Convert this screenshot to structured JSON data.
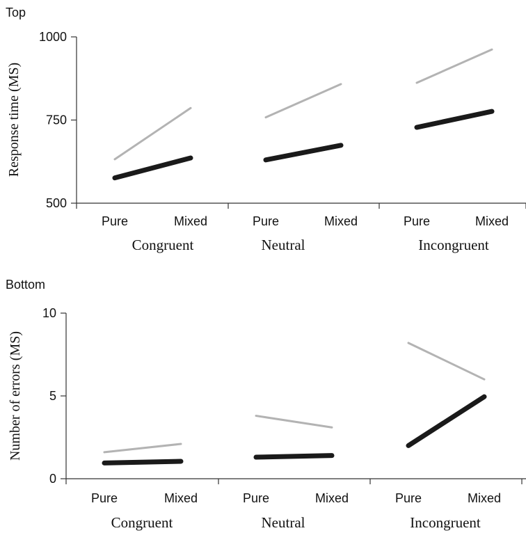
{
  "chart_data": [
    {
      "type": "line",
      "panel_title": "Top",
      "ylabel": "Response time (MS)",
      "ylim": [
        500,
        1000
      ],
      "yticks": [
        "500",
        "750",
        "1000"
      ],
      "conditions": [
        "Congruent",
        "Neutral",
        "Incongruent"
      ],
      "x_labels": [
        "Pure",
        "Mixed"
      ],
      "series": [
        {
          "color": "#b3b3b3",
          "style": "thin",
          "values": [
            [
              632,
              786
            ],
            [
              758,
              858
            ],
            [
              862,
              962
            ]
          ]
        },
        {
          "color": "#1a1a1a",
          "style": "thick",
          "values": [
            [
              576,
              636
            ],
            [
              630,
              674
            ],
            [
              728,
              776
            ]
          ]
        }
      ]
    },
    {
      "type": "line",
      "panel_title": "Bottom",
      "ylabel": "Number of errors (MS)",
      "ylim": [
        0,
        10
      ],
      "yticks": [
        "0",
        "5",
        "10"
      ],
      "conditions": [
        "Congruent",
        "Neutral",
        "Incongruent"
      ],
      "x_labels": [
        "Pure",
        "Mixed"
      ],
      "series": [
        {
          "color": "#b3b3b3",
          "style": "thin",
          "values": [
            [
              1.6,
              2.1
            ],
            [
              3.8,
              3.1
            ],
            [
              8.2,
              6.0
            ]
          ]
        },
        {
          "color": "#1a1a1a",
          "style": "thick",
          "values": [
            [
              0.95,
              1.05
            ],
            [
              1.3,
              1.4
            ],
            [
              2.0,
              4.95
            ]
          ]
        }
      ]
    }
  ]
}
